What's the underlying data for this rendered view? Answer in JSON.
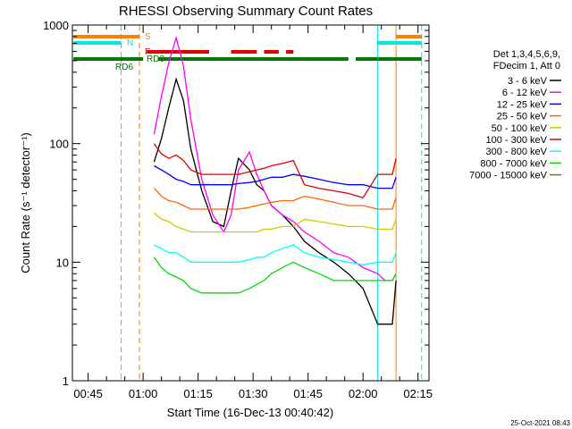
{
  "colors": {
    "bg": "#ffffff",
    "axis": "#000000",
    "cyan": "#00e5e5",
    "orange": "#ff8000",
    "red": "#e00000",
    "green": "#007a00"
  },
  "chart_data": {
    "type": "line",
    "title": "RHESSI Observing Summary Count Rates",
    "xlabel": "Start Time (16-Dec-13 00:40:42)",
    "ylabel": "Count Rate (s⁻¹ detector⁻¹)",
    "y_scale": "log",
    "ylim": [
      1,
      1000
    ],
    "xlim": [
      "00:40:42",
      "02:18:00"
    ],
    "x_ticks": [
      "00:45",
      "01:00",
      "01:15",
      "01:30",
      "01:45",
      "02:00",
      "02:15"
    ],
    "y_ticks": [
      "1",
      "10",
      "100",
      "1000"
    ],
    "grid": false,
    "legend_header": [
      "Det 1,3,4,5,6,9,",
      "FDecim 1, Att 0"
    ],
    "legend_position": "right",
    "timestamp": "25-Oct-2021 08:43",
    "flag_labels": {
      "S": "S",
      "N": "N",
      "F": "F",
      "RD0": "RD0",
      "RD6": "RD6"
    },
    "x": [
      "00:41",
      "00:46",
      "00:51",
      "00:54",
      "00:58",
      "01:01",
      "01:03",
      "01:05",
      "01:07",
      "01:09",
      "01:11",
      "01:13",
      "01:16",
      "01:19",
      "01:22",
      "01:24",
      "01:26",
      "01:29",
      "01:31",
      "01:33",
      "01:35",
      "01:38",
      "01:41",
      "01:44",
      "01:48",
      "01:52",
      "01:56",
      "02:00",
      "02:04",
      "02:06",
      "02:08",
      "02:09"
    ],
    "series": [
      {
        "name": "3 - 6 keV",
        "color": "#000000",
        "values": [
          null,
          null,
          null,
          null,
          null,
          null,
          70,
          110,
          200,
          350,
          230,
          90,
          40,
          22,
          20,
          40,
          75,
          60,
          45,
          40,
          30,
          25,
          20,
          15,
          12,
          10,
          8,
          6,
          3,
          3,
          3,
          7
        ]
      },
      {
        "name": "6 - 12 keV",
        "color": "#ff00ff",
        "values": [
          null,
          null,
          null,
          null,
          null,
          null,
          120,
          250,
          480,
          780,
          450,
          160,
          50,
          25,
          18,
          25,
          60,
          85,
          55,
          40,
          30,
          25,
          22,
          18,
          15,
          12,
          11,
          9,
          8,
          7,
          7,
          8
        ]
      },
      {
        "name": "12 - 25 keV",
        "color": "#0000ff",
        "values": [
          null,
          null,
          null,
          null,
          null,
          null,
          65,
          60,
          55,
          50,
          48,
          45,
          45,
          45,
          45,
          45,
          46,
          47,
          48,
          50,
          52,
          52,
          55,
          53,
          50,
          47,
          45,
          45,
          42,
          42,
          42,
          52
        ]
      },
      {
        "name": "25 - 50 keV",
        "color": "#ff6600",
        "values": [
          null,
          null,
          null,
          null,
          null,
          null,
          42,
          36,
          33,
          32,
          30,
          28,
          28,
          28,
          28,
          28,
          28,
          29,
          30,
          31,
          32,
          33,
          33,
          36,
          34,
          32,
          30,
          30,
          28,
          28,
          28,
          35
        ]
      },
      {
        "name": "50 - 100 keV",
        "color": "#cccc00",
        "values": [
          null,
          null,
          null,
          null,
          null,
          null,
          26,
          23,
          22,
          20,
          19,
          18,
          18,
          18,
          18,
          18,
          18,
          18,
          18,
          19,
          19,
          20,
          20,
          23,
          22,
          21,
          20,
          20,
          19,
          19,
          19,
          23
        ]
      },
      {
        "name": "100 - 300 keV",
        "color": "#e00000",
        "values": [
          null,
          null,
          null,
          null,
          null,
          null,
          100,
          82,
          75,
          80,
          72,
          60,
          55,
          55,
          55,
          55,
          55,
          58,
          60,
          62,
          65,
          68,
          72,
          45,
          42,
          40,
          38,
          35,
          55,
          55,
          55,
          75
        ]
      },
      {
        "name": "300 - 800 keV",
        "color": "#00ffff",
        "values": [
          null,
          null,
          null,
          null,
          null,
          null,
          14,
          13,
          12,
          12,
          11,
          10,
          10,
          10,
          10,
          10,
          10,
          10.5,
          11,
          11,
          12,
          13,
          14,
          12,
          11,
          10.5,
          10,
          9.5,
          10,
          10,
          10,
          12
        ]
      },
      {
        "name": "800 - 7000 keV",
        "color": "#00dd00",
        "values": [
          null,
          null,
          null,
          null,
          null,
          null,
          11,
          9,
          8,
          7.5,
          7,
          6,
          5.5,
          5.5,
          5.5,
          5.5,
          5.5,
          6,
          6.5,
          7,
          8,
          9,
          10,
          9,
          8,
          7,
          7,
          7,
          7,
          7,
          7,
          8
        ]
      },
      {
        "name": "7000 - 15000 keV",
        "color": "#8b6914",
        "values": [
          null,
          null,
          null,
          null,
          null,
          null,
          null,
          null,
          null,
          null,
          null,
          null,
          null,
          null,
          null,
          null,
          null,
          null,
          null,
          null,
          null,
          null,
          null,
          null,
          null,
          null,
          null,
          null,
          null,
          null,
          null,
          null
        ]
      }
    ],
    "flag_bars": [
      {
        "name": "S",
        "color": "#ff8000",
        "segments": [
          [
            "00:41",
            "00:59"
          ],
          [
            "02:09",
            "02:16"
          ]
        ]
      },
      {
        "name": "N",
        "color": "#00e5e5",
        "segments": [
          [
            "00:41",
            "00:54"
          ],
          [
            "02:04",
            "02:16"
          ]
        ]
      },
      {
        "name": "F",
        "color": "#e00000",
        "segments": [
          [
            "01:01",
            "01:18"
          ],
          [
            "01:24",
            "01:31"
          ],
          [
            "01:33",
            "01:37"
          ],
          [
            "01:39",
            "01:41"
          ]
        ]
      },
      {
        "name": "RD0",
        "color": "#007a00",
        "segments": [
          [
            "00:41",
            "01:00"
          ],
          [
            "01:04",
            "01:44"
          ],
          [
            "01:44",
            "01:56"
          ],
          [
            "01:58",
            "02:16"
          ]
        ]
      }
    ],
    "vlines": [
      {
        "x": "00:54",
        "color": "#00e5e5",
        "style": "dashed"
      },
      {
        "x": "00:59",
        "color": "#ff8000",
        "style": "dashed"
      },
      {
        "x": "02:04",
        "color": "#00e5e5",
        "style": "solid"
      },
      {
        "x": "02:09",
        "color": "#ff8000",
        "style": "solid"
      },
      {
        "x": "02:16",
        "color": "#00e5e5",
        "style": "dashed"
      }
    ]
  }
}
